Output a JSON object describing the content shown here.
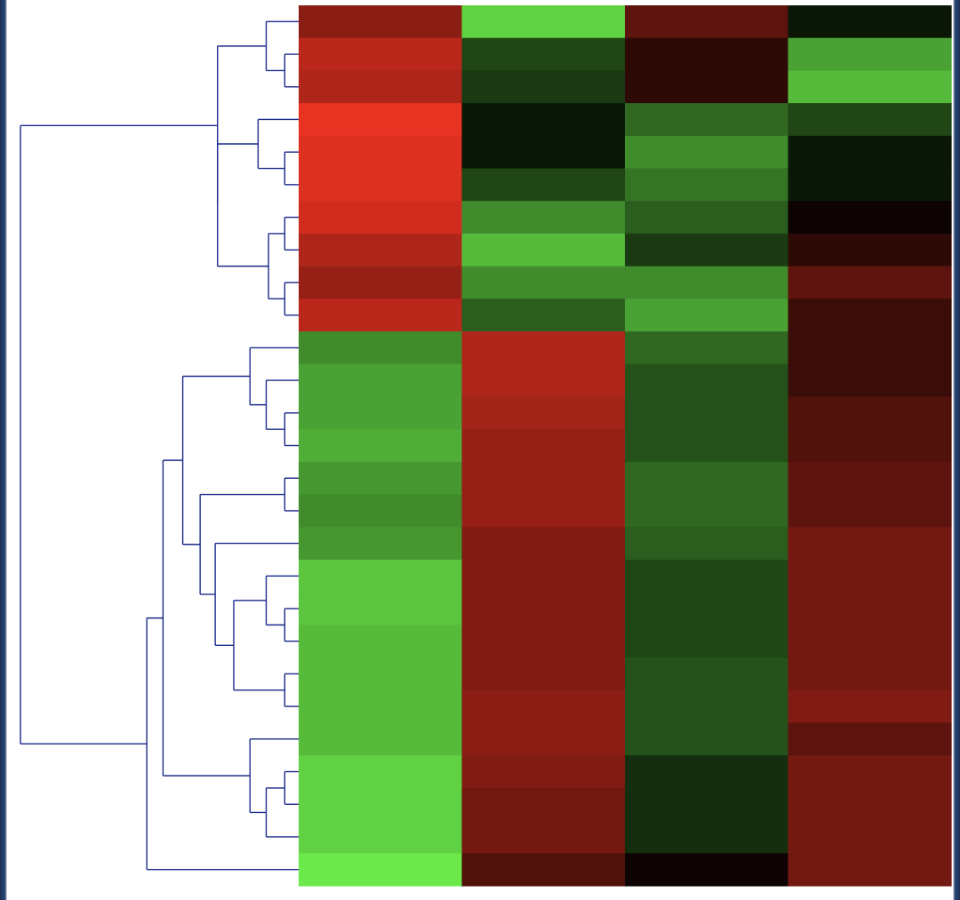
{
  "chart_data": {
    "type": "heatmap",
    "title": "",
    "xlabel": "",
    "ylabel": "",
    "row_count": 27,
    "column_count": 4,
    "color_scale": {
      "low": "#6be84a",
      "mid": "#000000",
      "high": "#e83222",
      "range": [
        -1,
        1
      ]
    },
    "dendrogram_color": "#1a2a8a",
    "values": [
      [
        0.6,
        -0.9,
        0.4,
        -0.1
      ],
      [
        0.8,
        -0.3,
        0.2,
        -0.7
      ],
      [
        0.75,
        -0.25,
        0.2,
        -0.8
      ],
      [
        1.0,
        -0.1,
        -0.45,
        -0.3
      ],
      [
        0.95,
        -0.1,
        -0.6,
        -0.1
      ],
      [
        0.95,
        -0.3,
        -0.5,
        -0.1
      ],
      [
        0.9,
        -0.6,
        -0.4,
        0.05
      ],
      [
        0.75,
        -0.8,
        -0.25,
        0.2
      ],
      [
        0.65,
        -0.6,
        -0.6,
        0.4
      ],
      [
        0.8,
        -0.4,
        -0.7,
        0.25
      ],
      [
        -0.6,
        0.75,
        -0.45,
        0.25
      ],
      [
        -0.7,
        0.75,
        -0.35,
        0.25
      ],
      [
        -0.7,
        0.7,
        -0.35,
        0.35
      ],
      [
        -0.75,
        0.65,
        -0.35,
        0.35
      ],
      [
        -0.65,
        0.65,
        -0.45,
        0.4
      ],
      [
        -0.6,
        0.65,
        -0.45,
        0.4
      ],
      [
        -0.65,
        0.55,
        -0.4,
        0.5
      ],
      [
        -0.85,
        0.55,
        -0.3,
        0.5
      ],
      [
        -0.85,
        0.55,
        -0.3,
        0.5
      ],
      [
        -0.8,
        0.55,
        -0.3,
        0.5
      ],
      [
        -0.8,
        0.55,
        -0.35,
        0.5
      ],
      [
        -0.8,
        0.6,
        -0.35,
        0.55
      ],
      [
        -0.8,
        0.6,
        -0.35,
        0.4
      ],
      [
        -0.9,
        0.55,
        -0.2,
        0.5
      ],
      [
        -0.9,
        0.5,
        -0.2,
        0.5
      ],
      [
        -0.9,
        0.5,
        -0.2,
        0.5
      ],
      [
        -1.0,
        0.35,
        0.05,
        0.5
      ]
    ],
    "dendrogram": {
      "leaf_order": [
        0,
        1,
        2,
        3,
        4,
        5,
        6,
        7,
        8,
        9,
        10,
        11,
        12,
        13,
        14,
        15,
        16,
        17,
        18,
        19,
        20,
        21,
        22,
        23,
        24,
        25,
        26
      ],
      "merges": [
        [
          1,
          2,
          0.12
        ],
        [
          0,
          27,
          0.28
        ],
        [
          4,
          5,
          0.12
        ],
        [
          3,
          29,
          0.35
        ],
        [
          6,
          7,
          0.12
        ],
        [
          8,
          9,
          0.12
        ],
        [
          31,
          32,
          0.26
        ],
        [
          30,
          33,
          0.7
        ],
        [
          28,
          34,
          0.7
        ],
        [
          12,
          13,
          0.12
        ],
        [
          11,
          36,
          0.28
        ],
        [
          10,
          37,
          0.42
        ],
        [
          14,
          15,
          0.12
        ],
        [
          18,
          19,
          0.12
        ],
        [
          17,
          40,
          0.28
        ],
        [
          20,
          21,
          0.12
        ],
        [
          41,
          42,
          0.56
        ],
        [
          16,
          43,
          0.72
        ],
        [
          39,
          44,
          0.85
        ],
        [
          38,
          45,
          1.0
        ],
        [
          23,
          24,
          0.12
        ],
        [
          25,
          47,
          0.28
        ],
        [
          22,
          48,
          0.42
        ],
        [
          46,
          49,
          1.17
        ],
        [
          26,
          50,
          1.31
        ],
        [
          35,
          51,
          2.4
        ]
      ],
      "max_height": 2.4
    }
  }
}
